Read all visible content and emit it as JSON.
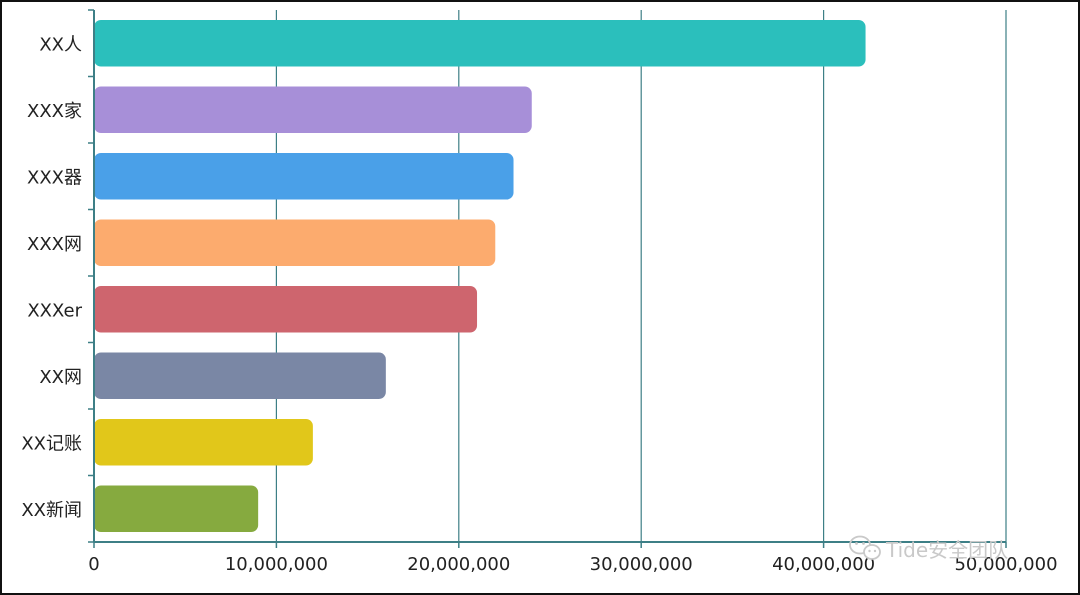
{
  "chart_data": {
    "type": "bar",
    "orientation": "horizontal",
    "title": "",
    "xlabel": "",
    "ylabel": "",
    "categories": [
      "XX人",
      "XXX家",
      "XXX器",
      "XXX网",
      "XXXer",
      "XX网",
      "XX记账",
      "XX新闻"
    ],
    "values": [
      42300000,
      24000000,
      23000000,
      22000000,
      21000000,
      16000000,
      12000000,
      9000000
    ],
    "colors": [
      "#2bbfbc",
      "#a78fd8",
      "#4aa0e8",
      "#fcab6e",
      "#ce656e",
      "#7a87a5",
      "#e1c71a",
      "#86aa3f"
    ],
    "xlim": [
      0,
      50000000
    ],
    "x_ticks": [
      0,
      10000000,
      20000000,
      30000000,
      40000000,
      50000000
    ],
    "x_tick_labels": [
      "0",
      "10,000,000",
      "20,000,000",
      "30,000,000",
      "40,000,000",
      "50,000,000"
    ],
    "grid": "vertical",
    "grid_color": "#3d7f86",
    "legend": "none"
  },
  "watermark": {
    "text": "Tide安全团队",
    "icon": "wechat-icon"
  }
}
